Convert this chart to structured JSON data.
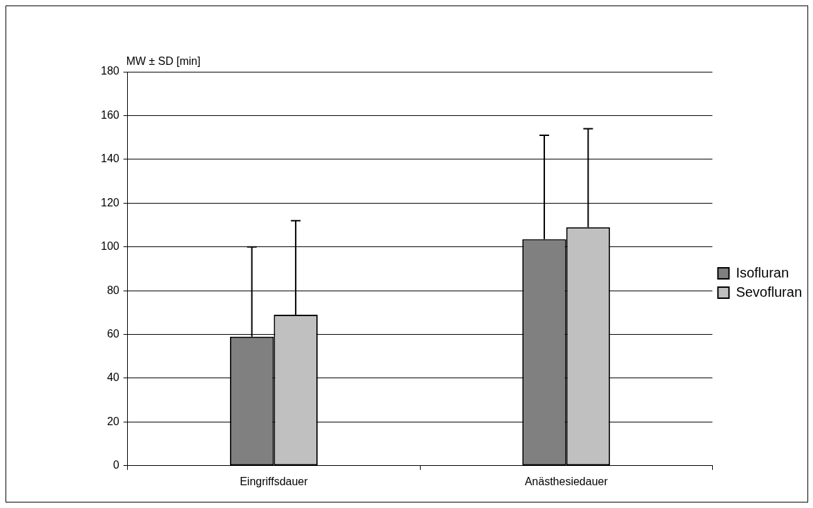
{
  "chart_data": {
    "type": "bar",
    "ylabel": "MW ± SD [min]",
    "categories": [
      "Eingriffsdauer",
      "Anästhesiedauer"
    ],
    "series": [
      {
        "name": "Isofluran",
        "color": "#808080",
        "values": [
          59,
          103.5
        ],
        "errors": [
          [
            59,
            100
          ],
          [
            103.5,
            151
          ]
        ]
      },
      {
        "name": "Sevofluran",
        "color": "#c0c0c0",
        "values": [
          69,
          109
        ],
        "errors": [
          [
            69,
            112
          ],
          [
            109,
            154
          ]
        ]
      }
    ],
    "ylim": [
      0,
      180
    ],
    "yticks": [
      0,
      20,
      40,
      60,
      80,
      100,
      120,
      140,
      160,
      180
    ],
    "grid": "y",
    "legend": "right"
  }
}
